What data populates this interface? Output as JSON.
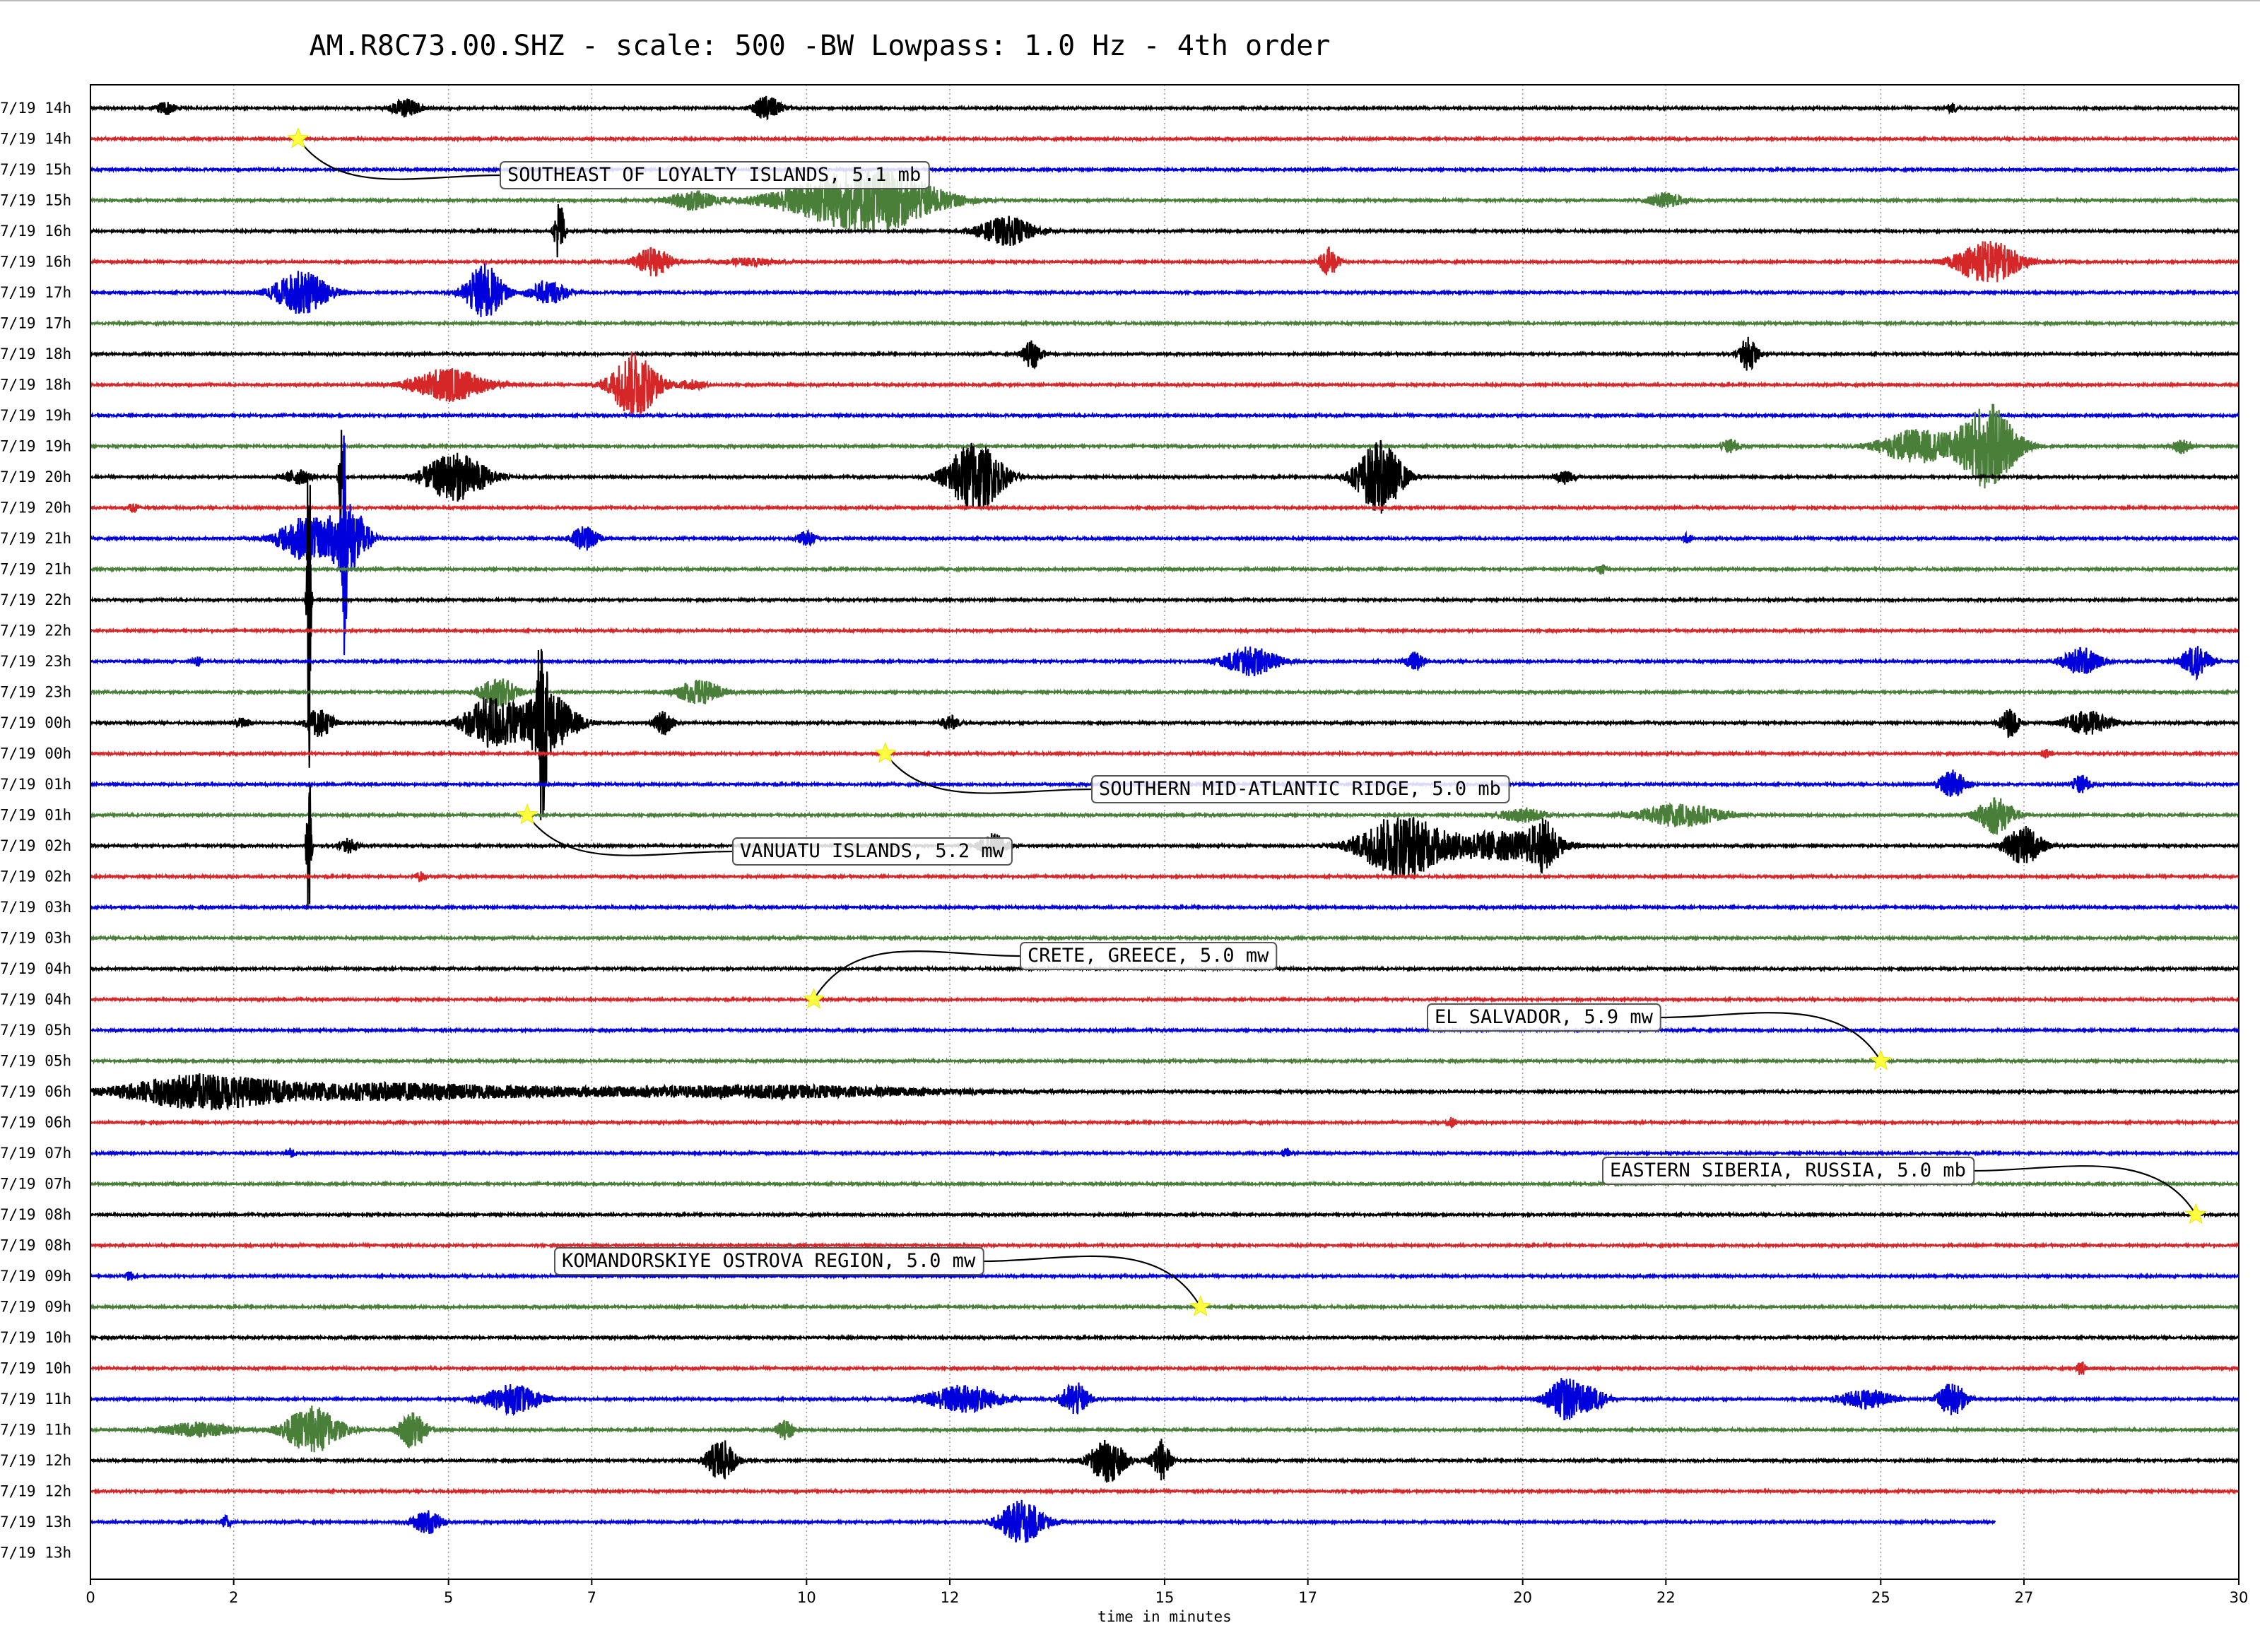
{
  "chart_data": {
    "type": "line",
    "title": "AM.R8C73.00.SHZ - scale: 500 -BW Lowpass: 1.0 Hz - 4th order",
    "xlabel": "time in minutes",
    "xlim": [
      0,
      30
    ],
    "xticks": [
      0,
      2,
      5,
      7,
      10,
      12,
      15,
      17,
      20,
      22,
      25,
      27,
      30
    ],
    "grid": "vertical dotted",
    "trace_colors": [
      "#000000",
      "#d62728",
      "#0000dd",
      "#4a7f3a"
    ],
    "rows": [
      {
        "label": "7/19 14h",
        "color": "#000000",
        "bursts": [
          [
            1.05,
            0.3,
            0.2
          ],
          [
            4.4,
            0.4,
            0.3
          ],
          [
            9.45,
            0.5,
            0.3
          ],
          [
            26.0,
            0.2,
            0.1
          ]
        ]
      },
      {
        "label": "7/19 14h",
        "color": "#d62728",
        "bursts": []
      },
      {
        "label": "7/19 15h",
        "color": "#0000dd",
        "bursts": []
      },
      {
        "label": "7/19 15h",
        "color": "#4a7f3a",
        "bursts": [
          [
            8.4,
            0.4,
            0.5
          ],
          [
            10.5,
            0.9,
            1.5
          ],
          [
            11.2,
            0.7,
            1.2
          ],
          [
            22.0,
            0.3,
            0.4
          ]
        ]
      },
      {
        "label": "7/19 16h",
        "color": "#000000",
        "bursts": [
          [
            6.55,
            1.4,
            0.1
          ],
          [
            12.8,
            0.6,
            0.6
          ]
        ]
      },
      {
        "label": "7/19 16h",
        "color": "#d62728",
        "bursts": [
          [
            7.85,
            0.6,
            0.4
          ],
          [
            9.2,
            0.15,
            0.6
          ],
          [
            17.3,
            0.6,
            0.2
          ],
          [
            26.5,
            0.9,
            0.7
          ]
        ]
      },
      {
        "label": "7/19 17h",
        "color": "#0000dd",
        "bursts": [
          [
            2.95,
            0.9,
            0.6
          ],
          [
            5.5,
            1.2,
            0.4
          ],
          [
            6.4,
            0.5,
            0.4
          ]
        ]
      },
      {
        "label": "7/19 17h",
        "color": "#4a7f3a",
        "bursts": []
      },
      {
        "label": "7/19 18h",
        "color": "#000000",
        "bursts": [
          [
            13.15,
            0.6,
            0.2
          ],
          [
            23.15,
            0.7,
            0.2
          ]
        ]
      },
      {
        "label": "7/19 18h",
        "color": "#d62728",
        "bursts": [
          [
            5.0,
            0.7,
            0.8
          ],
          [
            7.6,
            1.4,
            0.5
          ],
          [
            8.4,
            0.2,
            0.3
          ]
        ]
      },
      {
        "label": "7/19 19h",
        "color": "#0000dd",
        "bursts": []
      },
      {
        "label": "7/19 19h",
        "color": "#4a7f3a",
        "bursts": [
          [
            22.9,
            0.3,
            0.2
          ],
          [
            25.5,
            0.7,
            0.8
          ],
          [
            26.5,
            1.8,
            0.6
          ],
          [
            29.2,
            0.3,
            0.2
          ]
        ]
      },
      {
        "label": "7/19 20h",
        "color": "#000000",
        "bursts": [
          [
            2.9,
            0.3,
            0.3
          ],
          [
            3.5,
            2.0,
            0.05
          ],
          [
            5.1,
            1.0,
            0.7
          ],
          [
            12.35,
            1.5,
            0.6
          ],
          [
            18.0,
            1.5,
            0.5
          ],
          [
            20.6,
            0.3,
            0.2
          ]
        ]
      },
      {
        "label": "7/19 20h",
        "color": "#d62728",
        "bursts": [
          [
            0.6,
            0.2,
            0.1
          ]
        ]
      },
      {
        "label": "7/19 21h",
        "color": "#0000dd",
        "bursts": [
          [
            3.0,
            0.9,
            0.6
          ],
          [
            3.6,
            1.5,
            0.4
          ],
          [
            3.55,
            3.8,
            0.04
          ],
          [
            6.9,
            0.5,
            0.3
          ],
          [
            10.0,
            0.3,
            0.2
          ],
          [
            22.3,
            0.2,
            0.1
          ]
        ]
      },
      {
        "label": "7/19 21h",
        "color": "#4a7f3a",
        "bursts": [
          [
            21.1,
            0.2,
            0.1
          ]
        ]
      },
      {
        "label": "7/19 22h",
        "color": "#000000",
        "bursts": [
          [
            3.05,
            9.0,
            0.04
          ]
        ]
      },
      {
        "label": "7/19 22h",
        "color": "#d62728",
        "bursts": []
      },
      {
        "label": "7/19 23h",
        "color": "#0000dd",
        "bursts": [
          [
            1.5,
            0.2,
            0.1
          ],
          [
            16.2,
            0.6,
            0.6
          ],
          [
            18.5,
            0.4,
            0.2
          ],
          [
            27.8,
            0.6,
            0.4
          ],
          [
            29.4,
            0.7,
            0.3
          ]
        ]
      },
      {
        "label": "7/19 23h",
        "color": "#4a7f3a",
        "bursts": [
          [
            5.7,
            0.6,
            0.4
          ],
          [
            8.5,
            0.5,
            0.5
          ]
        ]
      },
      {
        "label": "7/19 00h",
        "color": "#000000",
        "bursts": [
          [
            2.1,
            0.2,
            0.2
          ],
          [
            3.2,
            0.6,
            0.3
          ],
          [
            5.6,
            1.1,
            0.6
          ],
          [
            6.3,
            3.0,
            0.12
          ],
          [
            6.4,
            1.2,
            0.6
          ],
          [
            8.0,
            0.5,
            0.2
          ],
          [
            12.0,
            0.3,
            0.2
          ],
          [
            26.8,
            0.6,
            0.2
          ],
          [
            27.9,
            0.5,
            0.5
          ]
        ]
      },
      {
        "label": "7/19 00h",
        "color": "#d62728",
        "bursts": [
          [
            27.3,
            0.2,
            0.1
          ]
        ]
      },
      {
        "label": "7/19 01h",
        "color": "#0000dd",
        "bursts": [
          [
            26.0,
            0.6,
            0.3
          ],
          [
            27.8,
            0.4,
            0.2
          ]
        ]
      },
      {
        "label": "7/19 01h",
        "color": "#4a7f3a",
        "bursts": [
          [
            20.0,
            0.3,
            0.5
          ],
          [
            22.2,
            0.5,
            0.9
          ],
          [
            26.6,
            0.8,
            0.4
          ]
        ]
      },
      {
        "label": "7/19 02h",
        "color": "#000000",
        "bursts": [
          [
            3.05,
            3.5,
            0.05
          ],
          [
            3.6,
            0.3,
            0.2
          ],
          [
            12.6,
            0.5,
            0.3
          ],
          [
            18.3,
            1.3,
            0.9
          ],
          [
            19.7,
            0.6,
            1.2
          ],
          [
            20.3,
            0.8,
            0.3
          ],
          [
            27.0,
            0.8,
            0.4
          ]
        ]
      },
      {
        "label": "7/19 02h",
        "color": "#d62728",
        "bursts": [
          [
            4.6,
            0.2,
            0.1
          ]
        ]
      },
      {
        "label": "7/19 03h",
        "color": "#0000dd",
        "bursts": []
      },
      {
        "label": "7/19 03h",
        "color": "#4a7f3a",
        "bursts": []
      },
      {
        "label": "7/19 04h",
        "color": "#000000",
        "bursts": []
      },
      {
        "label": "7/19 04h",
        "color": "#d62728",
        "bursts": []
      },
      {
        "label": "7/19 05h",
        "color": "#0000dd",
        "bursts": []
      },
      {
        "label": "7/19 05h",
        "color": "#4a7f3a",
        "bursts": []
      },
      {
        "label": "7/19 06h",
        "color": "#000000",
        "bursts": [
          [
            1.5,
            0.6,
            1.6
          ],
          [
            4.0,
            0.35,
            4.0
          ],
          [
            9.5,
            0.25,
            4.0
          ]
        ]
      },
      {
        "label": "7/19 06h",
        "color": "#d62728",
        "bursts": [
          [
            19.0,
            0.2,
            0.1
          ]
        ]
      },
      {
        "label": "7/19 07h",
        "color": "#0000dd",
        "bursts": [
          [
            2.8,
            0.2,
            0.1
          ],
          [
            16.7,
            0.2,
            0.1
          ]
        ]
      },
      {
        "label": "7/19 07h",
        "color": "#4a7f3a",
        "bursts": []
      },
      {
        "label": "7/19 08h",
        "color": "#000000",
        "bursts": []
      },
      {
        "label": "7/19 08h",
        "color": "#d62728",
        "bursts": []
      },
      {
        "label": "7/19 09h",
        "color": "#0000dd",
        "bursts": [
          [
            0.55,
            0.2,
            0.1
          ]
        ]
      },
      {
        "label": "7/19 09h",
        "color": "#4a7f3a",
        "bursts": []
      },
      {
        "label": "7/19 10h",
        "color": "#000000",
        "bursts": []
      },
      {
        "label": "7/19 10h",
        "color": "#d62728",
        "bursts": [
          [
            27.8,
            0.3,
            0.1
          ]
        ]
      },
      {
        "label": "7/19 11h",
        "color": "#0000dd",
        "bursts": [
          [
            5.9,
            0.6,
            0.6
          ],
          [
            12.2,
            0.6,
            0.8
          ],
          [
            13.75,
            0.7,
            0.3
          ],
          [
            20.6,
            0.9,
            0.4
          ],
          [
            21.0,
            0.4,
            0.3
          ],
          [
            24.8,
            0.4,
            0.6
          ],
          [
            26.0,
            0.7,
            0.3
          ]
        ]
      },
      {
        "label": "7/19 11h",
        "color": "#4a7f3a",
        "bursts": [
          [
            1.5,
            0.3,
            0.8
          ],
          [
            3.1,
            1.0,
            0.6
          ],
          [
            4.5,
            0.8,
            0.3
          ],
          [
            9.7,
            0.4,
            0.2
          ]
        ]
      },
      {
        "label": "7/19 12h",
        "color": "#000000",
        "bursts": [
          [
            8.8,
            0.9,
            0.3
          ],
          [
            14.2,
            0.9,
            0.4
          ],
          [
            14.95,
            0.9,
            0.2
          ]
        ]
      },
      {
        "label": "7/19 12h",
        "color": "#d62728",
        "bursts": []
      },
      {
        "label": "7/19 13h",
        "color": "#0000dd",
        "bursts": [
          [
            1.9,
            0.3,
            0.1
          ],
          [
            4.7,
            0.5,
            0.3
          ],
          [
            13.0,
            0.9,
            0.5
          ]
        ],
        "end": 26.6
      },
      {
        "label": "7/19 13h",
        "color": "#4a7f3a",
        "bursts": [],
        "end": 0
      }
    ],
    "events": [
      {
        "text": "SOUTHEAST OF LOYALTY ISLANDS, 5.1 mb",
        "row": 1,
        "minute": 2.9
      },
      {
        "text": "SOUTHERN MID-ATLANTIC RIDGE, 5.0 mb",
        "row": 21,
        "minute": 11.1
      },
      {
        "text": "VANUATU ISLANDS, 5.2 mw",
        "row": 23,
        "minute": 6.1
      },
      {
        "text": "CRETE, GREECE, 5.0 mw",
        "row": 29,
        "minute": 10.1
      },
      {
        "text": "EL SALVADOR, 5.9 mw",
        "row": 31,
        "minute": 25.0
      },
      {
        "text": "EASTERN SIBERIA, RUSSIA, 5.0 mb",
        "row": 36,
        "minute": 29.4
      },
      {
        "text": "KOMANDORSKIYE OSTROVA REGION, 5.0 mw",
        "row": 39,
        "minute": 15.5
      }
    ]
  }
}
